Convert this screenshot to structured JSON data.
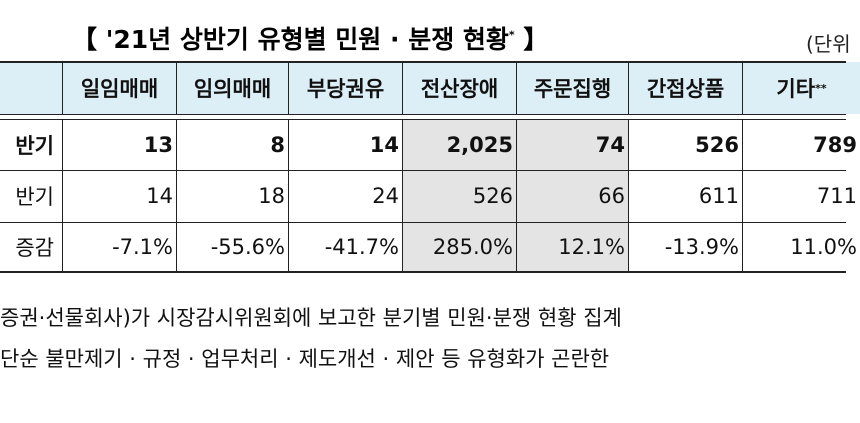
{
  "header": {
    "open": "【",
    "title": "'21년 상반기 유형별 민원 · 분쟁 현황",
    "mark": "*",
    "close": "】",
    "unit": "(단위"
  },
  "table": {
    "columns": [
      {
        "label": "일임매매"
      },
      {
        "label": "임의매매"
      },
      {
        "label": "부당권유"
      },
      {
        "label": "전산장애"
      },
      {
        "label": "주문집행"
      },
      {
        "label": "간접상품"
      },
      {
        "label": "기타",
        "mark": "**"
      }
    ],
    "rows": [
      [
        "반기",
        "13",
        "8",
        "14",
        "2,025",
        "74",
        "526",
        "789"
      ],
      [
        "반기",
        "14",
        "18",
        "24",
        "526",
        "66",
        "611",
        "711"
      ],
      [
        "증감",
        "-7.1%",
        "-55.6%",
        "-41.7%",
        "285.0%",
        "12.1%",
        "-13.9%",
        "11.0%"
      ]
    ]
  },
  "notes": [
    "증권·선물회사)가 시장감시위원회에 보고한 분기별 민원·분쟁 현황 집계",
    "단순 불만제기 · 규정 · 업무처리 · 제도개선 · 제안 등 유형화가 곤란한"
  ]
}
